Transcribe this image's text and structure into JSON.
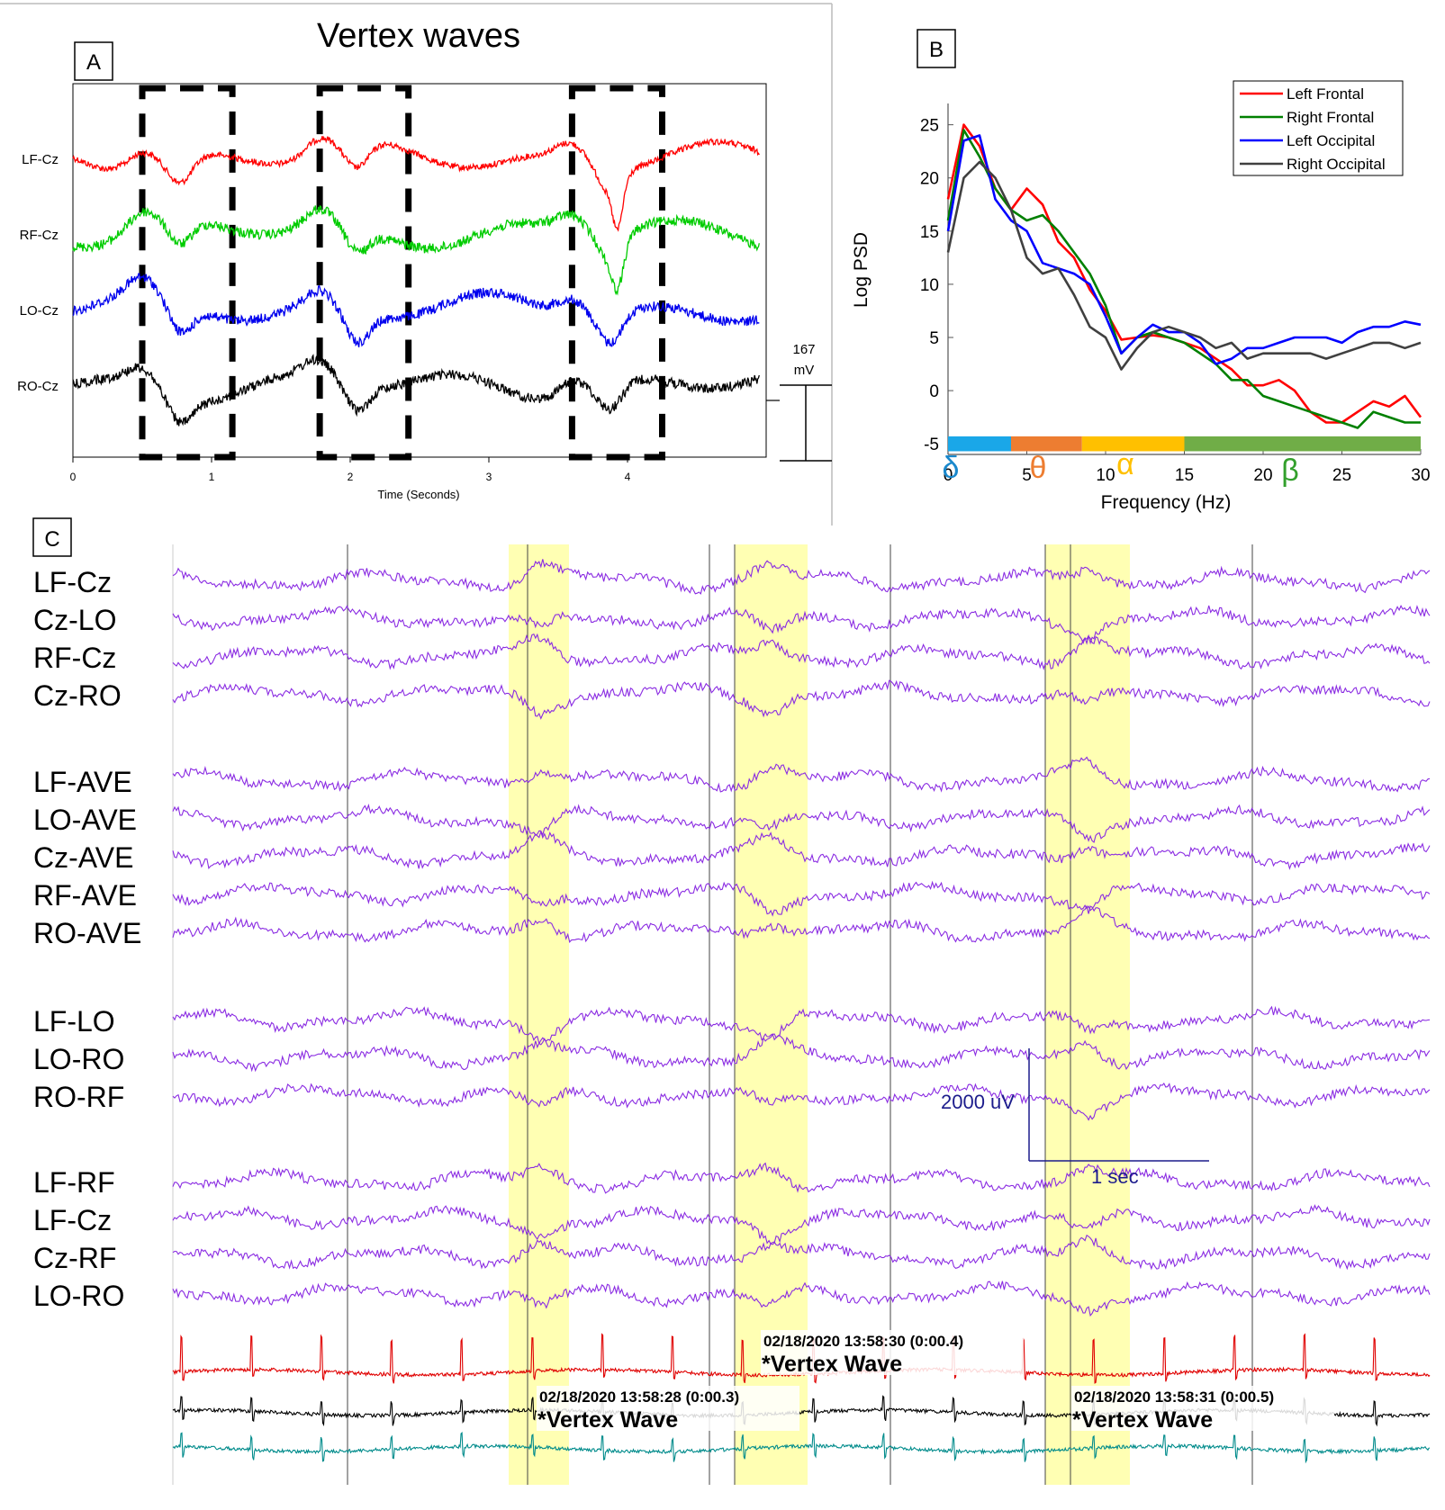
{
  "panel_a": {
    "label": "A",
    "title": "Vertex waves",
    "channels": [
      "LF-Cz",
      "RF-Cz",
      "LO-Cz",
      "RO-Cz"
    ],
    "colors": [
      "#ff0000",
      "#00cc00",
      "#0000ee",
      "#000000"
    ],
    "x_ticks": [
      "0",
      "1",
      "2",
      "3",
      "4"
    ],
    "xlabel": "Time (Seconds)",
    "scale_value": "167",
    "scale_unit": "mV"
  },
  "panel_b": {
    "label": "B",
    "band_symbols": [
      {
        "symbol": "δ",
        "color": "#1a88cc"
      },
      {
        "symbol": "θ",
        "color": "#ed7d31"
      },
      {
        "symbol": "α",
        "color": "#ffc000"
      },
      {
        "symbol": "β",
        "color": "#33a02c"
      }
    ]
  },
  "panel_c": {
    "label": "C",
    "groups": [
      [
        "LF-Cz",
        "Cz-LO",
        "RF-Cz",
        "Cz-RO"
      ],
      [
        "LF-AVE",
        "LO-AVE",
        "Cz-AVE",
        "RF-AVE",
        "RO-AVE"
      ],
      [
        "LF-LO",
        "LO-RO",
        "RO-RF"
      ],
      [
        "LF-RF",
        "LF-Cz",
        "Cz-RF",
        "LO-RO"
      ]
    ],
    "scale_amplitude": "2000 uV",
    "scale_time": "1 sec",
    "annotations": [
      {
        "timestamp": "02/18/2020 13:58:28 (0:00.3)",
        "text": "*Vertex Wave"
      },
      {
        "timestamp": "02/18/2020 13:58:30 (0:00.4)",
        "text": "*Vertex Wave"
      },
      {
        "timestamp": "02/18/2020 13:58:31 (0:00.5)",
        "text": "*Vertex Wave"
      }
    ],
    "trace_color": "#8a2be2",
    "highlight_color": "#ffffb3",
    "ecg_colors": [
      "#e00000",
      "#000000",
      "#008b8b"
    ]
  },
  "chart_data": [
    {
      "type": "line",
      "title": "Vertex waves",
      "xlabel": "Time (Seconds)",
      "ylabel": "",
      "xlim": [
        0,
        5
      ],
      "x_ticks": [
        0,
        1,
        2,
        3,
        4
      ],
      "series": [
        {
          "name": "LF-Cz",
          "color": "#ff0000"
        },
        {
          "name": "RF-Cz",
          "color": "#00cc00"
        },
        {
          "name": "LO-Cz",
          "color": "#0000ee"
        },
        {
          "name": "RO-Cz",
          "color": "#000000"
        }
      ],
      "highlight_windows_s": [
        [
          0.5,
          1.15
        ],
        [
          1.78,
          2.42
        ],
        [
          3.6,
          4.25
        ]
      ],
      "scale_bar": "167 mV"
    },
    {
      "type": "line",
      "title": "",
      "xlabel": "Frequency (Hz)",
      "ylabel": "Log PSD",
      "xlim": [
        0,
        30
      ],
      "ylim": [
        -6,
        27
      ],
      "x_ticks": [
        0,
        5,
        10,
        15,
        20,
        25,
        30
      ],
      "y_ticks": [
        -5,
        0,
        5,
        10,
        15,
        20,
        25
      ],
      "legend_position": "top-right",
      "x": [
        0,
        1,
        2,
        3,
        4,
        5,
        6,
        7,
        8,
        9,
        10,
        11,
        12,
        13,
        14,
        15,
        16,
        17,
        18,
        19,
        20,
        21,
        22,
        23,
        24,
        25,
        26,
        27,
        28,
        29,
        30
      ],
      "series": [
        {
          "name": "Left Frontal",
          "color": "#ff0000",
          "values": [
            18,
            25,
            23,
            19,
            17,
            19,
            17.5,
            14,
            12.5,
            9.5,
            7.5,
            4.8,
            5,
            5.2,
            5,
            4.5,
            4,
            3,
            2,
            0.5,
            0.5,
            1,
            0,
            -2,
            -3,
            -3,
            -2,
            -1,
            -1.5,
            -0.5,
            -2.5
          ]
        },
        {
          "name": "Right Frontal",
          "color": "#008000",
          "values": [
            16,
            24.5,
            22,
            19,
            17,
            16,
            16.5,
            15,
            13,
            11,
            8,
            3.5,
            5,
            5.5,
            5,
            4.5,
            3.5,
            2.5,
            1,
            1,
            -0.5,
            -1,
            -1.5,
            -2,
            -2.5,
            -3,
            -3.5,
            -2,
            -2.5,
            -3,
            -3
          ]
        },
        {
          "name": "Left Occipital",
          "color": "#0000ff",
          "values": [
            15,
            23.5,
            24,
            18,
            16,
            15,
            12,
            11.5,
            11,
            10,
            7,
            3.5,
            5,
            6.2,
            5.5,
            5.5,
            4.5,
            2.5,
            3,
            4,
            4,
            4.5,
            5,
            5,
            5,
            4.5,
            5.5,
            6,
            6,
            6.5,
            6.2
          ]
        },
        {
          "name": "Right Occipital",
          "color": "#404040",
          "values": [
            13,
            20,
            21.5,
            20,
            17,
            12.5,
            11,
            11.5,
            9,
            6,
            5,
            2,
            4,
            5.5,
            6,
            5.5,
            5,
            4,
            4.5,
            3,
            3.5,
            3.5,
            3.5,
            3.5,
            3,
            3.5,
            4,
            4.5,
            4.5,
            4,
            4.5
          ]
        }
      ],
      "bands": [
        {
          "name": "δ",
          "range_hz": [
            0,
            4
          ],
          "color": "#1aa7e8"
        },
        {
          "name": "θ",
          "range_hz": [
            4,
            8.5
          ],
          "color": "#ed7d31"
        },
        {
          "name": "α",
          "range_hz": [
            8.5,
            15
          ],
          "color": "#ffc000"
        },
        {
          "name": "β",
          "range_hz": [
            15,
            30
          ],
          "color": "#70ad47"
        }
      ]
    }
  ]
}
